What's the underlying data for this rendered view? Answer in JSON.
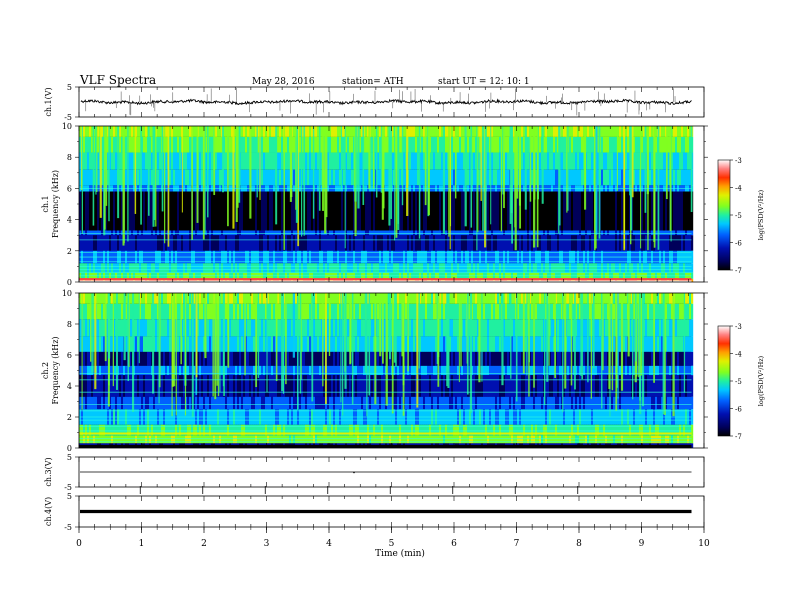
{
  "header": {
    "title": "VLF Spectra",
    "date": "May 28, 2016",
    "station": "station= ATH",
    "start": "start UT =  12: 10: 1"
  },
  "chart_data": [
    {
      "type": "line",
      "id": "ch1-waveform",
      "ylabel": "ch.1(V)",
      "ylim": [
        -5,
        5
      ],
      "yticks": [
        5,
        -5
      ],
      "baseline": 0,
      "xlim": [
        0,
        10
      ]
    },
    {
      "type": "heatmap",
      "id": "ch1-spectrogram",
      "ylabel_top": "ch.1",
      "ylabel": "Frequency (kHz)",
      "ylim": [
        0,
        10
      ],
      "yticks": [
        0,
        2,
        4,
        6,
        8,
        10
      ],
      "xlim": [
        0,
        9.8
      ],
      "colorbar": {
        "label": "log(PSD(V²/Hz)",
        "range": [
          -7,
          -3
        ],
        "ticks": [
          -3,
          -4,
          -5,
          -6,
          -7
        ]
      }
    },
    {
      "type": "heatmap",
      "id": "ch2-spectrogram",
      "ylabel_top": "ch.2",
      "ylabel": "Frequency (kHz)",
      "ylim": [
        0,
        10
      ],
      "yticks": [
        0,
        2,
        4,
        6,
        8,
        10
      ],
      "xlim": [
        0,
        9.8
      ],
      "colorbar": {
        "label": "log(PSD(V²/Hz)",
        "range": [
          -7,
          -3
        ],
        "ticks": [
          -3,
          -4,
          -5,
          -6,
          -7
        ]
      }
    },
    {
      "type": "line",
      "id": "ch3-waveform",
      "ylabel": "ch.3(V)",
      "ylim": [
        -5,
        5
      ],
      "yticks": [
        5,
        -5
      ],
      "baseline": 0,
      "xlim": [
        0,
        10
      ]
    },
    {
      "type": "line",
      "id": "ch4-waveform",
      "ylabel": "ch.4(V)",
      "ylim": [
        -5,
        5
      ],
      "yticks": [
        5,
        -5
      ],
      "baseline": 0,
      "xlim": [
        0,
        10
      ]
    }
  ],
  "xaxis": {
    "label": "Time (min)",
    "ticks": [
      0,
      1,
      2,
      3,
      4,
      5,
      6,
      7,
      8,
      9,
      10
    ]
  },
  "colors": {
    "colormap": [
      "#000000",
      "#00005a",
      "#0010b0",
      "#0060ff",
      "#00c8ff",
      "#20f0a0",
      "#80ff20",
      "#e0f000",
      "#ffa000",
      "#ff3000",
      "#ff8080",
      "#ffffff"
    ]
  }
}
